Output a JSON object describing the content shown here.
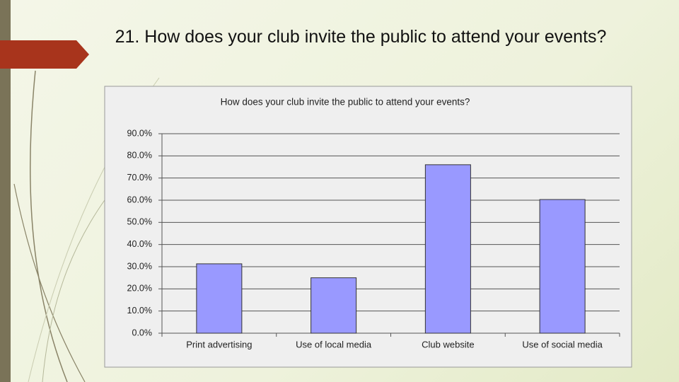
{
  "slide": {
    "title": "21. How does your club invite the public to attend your events?"
  },
  "chart_data": {
    "type": "bar",
    "title": "How does your club invite the public to attend your events?",
    "categories": [
      "Print advertising",
      "Use of local media",
      "Club website",
      "Use of social media"
    ],
    "values": [
      31.3,
      25.0,
      76.0,
      60.3
    ],
    "color": "#9999ff",
    "ylim": [
      0,
      90
    ],
    "yticks": [
      {
        "value": 0,
        "label": "0.0%"
      },
      {
        "value": 10,
        "label": "10.0%"
      },
      {
        "value": 20,
        "label": "20.0%"
      },
      {
        "value": 30,
        "label": "30.0%"
      },
      {
        "value": 40,
        "label": "40.0%"
      },
      {
        "value": 50,
        "label": "50.0%"
      },
      {
        "value": 60,
        "label": "60.0%"
      },
      {
        "value": 70,
        "label": "70.0%"
      },
      {
        "value": 80,
        "label": "80.0%"
      },
      {
        "value": 90,
        "label": "90.0%"
      }
    ],
    "grid": true
  }
}
